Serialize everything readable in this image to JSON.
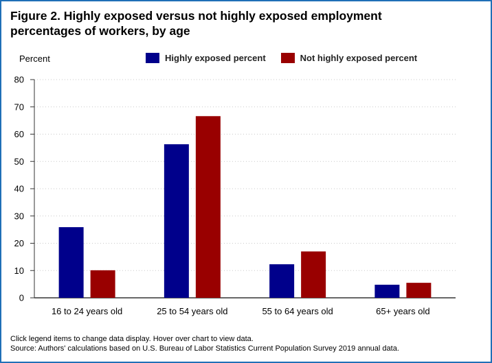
{
  "title_line1": "Figure 2. Highly exposed versus not highly exposed employment",
  "title_line2": "percentages of workers, by age",
  "footer_note": "Click legend items to change data display. Hover over chart to view data.",
  "footer_source": "Source: Authors' calculations based on U.S. Bureau of Labor Statistics Current Population Survey 2019 annual data.",
  "chart_data": {
    "type": "bar",
    "title": "Figure 2. Highly exposed versus not highly exposed employment percentages of workers, by age",
    "ylabel": "Percent",
    "xlabel": "",
    "ylim": [
      0,
      80
    ],
    "yticks": [
      0,
      10,
      20,
      30,
      40,
      50,
      60,
      70,
      80
    ],
    "grid": "horizontal dotted",
    "legend_position": "top",
    "categories": [
      "16 to 24 years old",
      "25 to 54 years old",
      "55 to 64 years old",
      "65+ years old"
    ],
    "series": [
      {
        "name": "Highly exposed percent",
        "color": "#00008b",
        "values": [
          25.9,
          56.3,
          12.3,
          4.8
        ]
      },
      {
        "name": "Not highly exposed percent",
        "color": "#990000",
        "values": [
          10.1,
          66.6,
          17.0,
          5.5
        ]
      }
    ]
  }
}
